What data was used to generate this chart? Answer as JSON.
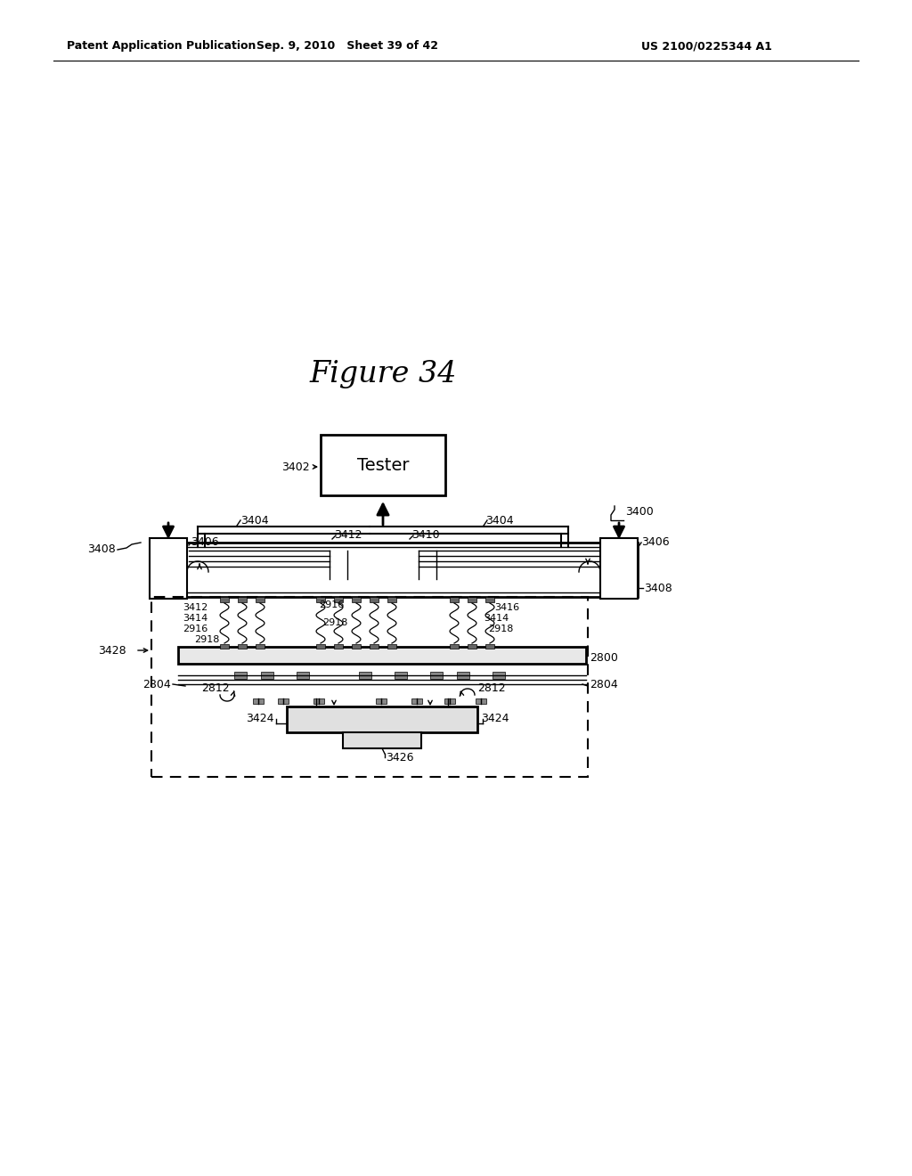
{
  "title": "Figure 34",
  "header_left": "Patent Application Publication",
  "header_mid": "Sep. 9, 2010   Sheet 39 of 42",
  "header_right": "US 2100/0225344 A1",
  "bg_color": "#ffffff"
}
